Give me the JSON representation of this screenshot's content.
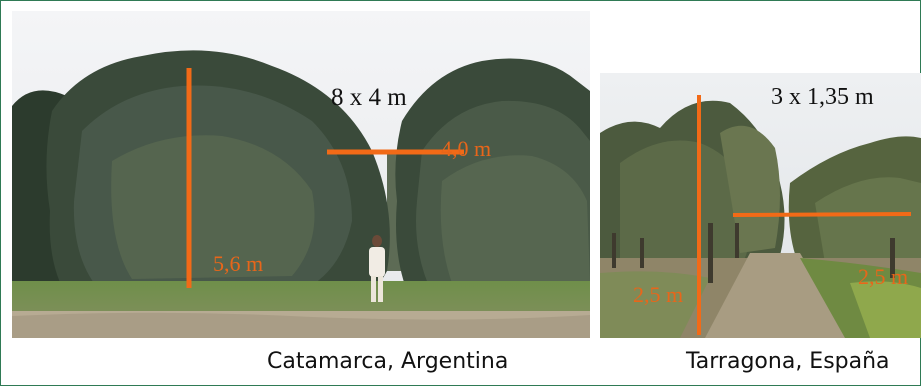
{
  "colors": {
    "frame_border": "#2f7a55",
    "measure_line": "#f26a17",
    "measure_text": "#e8661a"
  },
  "photos": [
    {
      "caption": "Catamarca, Argentina",
      "spacing": "8 x 4 m",
      "height_label": "5,6 m",
      "width_label": "4,0 m"
    },
    {
      "caption": "Tarragona, España",
      "spacing": "3 x 1,35 m",
      "height_label": "2,5 m",
      "width_label": "2,5 m"
    }
  ]
}
